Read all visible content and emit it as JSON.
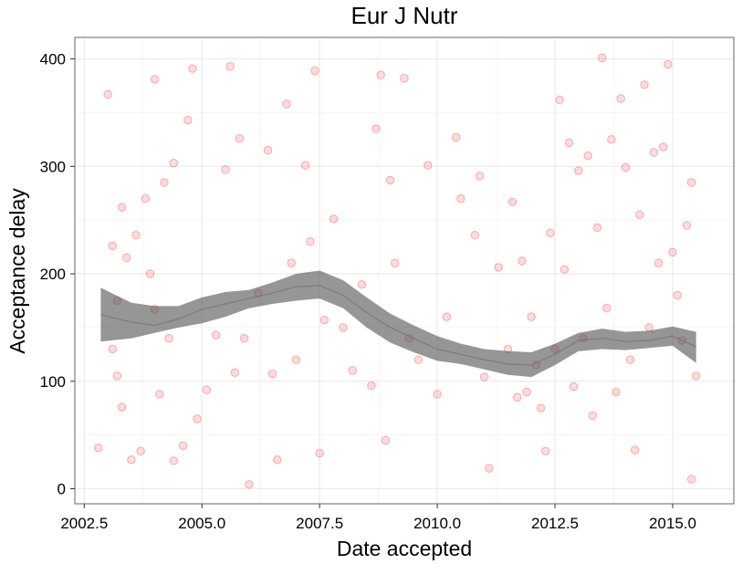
{
  "chart_data": {
    "type": "scatter",
    "title": "Eur J Nutr",
    "xlabel": "Date accepted",
    "ylabel": "Acceptance delay",
    "xlim": [
      2002.3,
      2016.3
    ],
    "ylim": [
      -14,
      420
    ],
    "x_ticks": [
      2002.5,
      2005.0,
      2007.5,
      2010.0,
      2012.5,
      2015.0
    ],
    "x_tick_labels": [
      "2002.5",
      "2005.0",
      "2007.5",
      "2010.0",
      "2012.5",
      "2015.0"
    ],
    "y_ticks": [
      0,
      100,
      200,
      300,
      400
    ],
    "y_tick_labels": [
      "0",
      "100",
      "200",
      "300",
      "400"
    ],
    "grid": true,
    "legend": "none",
    "colors": {
      "points": "#ff0000",
      "smooth_band": "#555555",
      "panel_border": "#7f7f7f",
      "grid": "#ebebeb"
    },
    "series": [
      {
        "values": [
          [
            2002.8,
            38
          ],
          [
            2003.0,
            367
          ],
          [
            2003.1,
            226
          ],
          [
            2003.1,
            130
          ],
          [
            2003.2,
            175
          ],
          [
            2003.2,
            105
          ],
          [
            2003.3,
            262
          ],
          [
            2003.3,
            76
          ],
          [
            2003.4,
            215
          ],
          [
            2003.5,
            27
          ],
          [
            2003.6,
            236
          ],
          [
            2003.7,
            35
          ],
          [
            2003.8,
            270
          ],
          [
            2003.9,
            200
          ],
          [
            2004.0,
            167
          ],
          [
            2004.0,
            381
          ],
          [
            2004.1,
            88
          ],
          [
            2004.2,
            285
          ],
          [
            2004.3,
            140
          ],
          [
            2004.4,
            26
          ],
          [
            2004.4,
            303
          ],
          [
            2004.6,
            40
          ],
          [
            2004.7,
            343
          ],
          [
            2004.8,
            391
          ],
          [
            2004.9,
            65
          ],
          [
            2005.1,
            92
          ],
          [
            2005.3,
            143
          ],
          [
            2005.5,
            297
          ],
          [
            2005.6,
            393
          ],
          [
            2005.7,
            108
          ],
          [
            2005.8,
            326
          ],
          [
            2005.9,
            140
          ],
          [
            2006.0,
            4
          ],
          [
            2006.2,
            182
          ],
          [
            2006.4,
            315
          ],
          [
            2006.5,
            107
          ],
          [
            2006.6,
            27
          ],
          [
            2006.8,
            358
          ],
          [
            2006.9,
            210
          ],
          [
            2007.0,
            120
          ],
          [
            2007.2,
            301
          ],
          [
            2007.3,
            230
          ],
          [
            2007.4,
            389
          ],
          [
            2007.5,
            33
          ],
          [
            2007.6,
            157
          ],
          [
            2007.8,
            251
          ],
          [
            2008.0,
            150
          ],
          [
            2008.2,
            110
          ],
          [
            2008.4,
            190
          ],
          [
            2008.6,
            96
          ],
          [
            2008.7,
            335
          ],
          [
            2008.8,
            385
          ],
          [
            2008.9,
            45
          ],
          [
            2009.0,
            287
          ],
          [
            2009.1,
            210
          ],
          [
            2009.3,
            382
          ],
          [
            2009.4,
            140
          ],
          [
            2009.6,
            120
          ],
          [
            2009.8,
            301
          ],
          [
            2010.0,
            88
          ],
          [
            2010.2,
            160
          ],
          [
            2010.4,
            327
          ],
          [
            2010.5,
            270
          ],
          [
            2010.8,
            236
          ],
          [
            2010.9,
            291
          ],
          [
            2011.0,
            104
          ],
          [
            2011.1,
            19
          ],
          [
            2011.3,
            206
          ],
          [
            2011.5,
            130
          ],
          [
            2011.6,
            267
          ],
          [
            2011.7,
            85
          ],
          [
            2011.8,
            212
          ],
          [
            2011.9,
            90
          ],
          [
            2012.0,
            160
          ],
          [
            2012.1,
            115
          ],
          [
            2012.2,
            75
          ],
          [
            2012.3,
            35
          ],
          [
            2012.4,
            238
          ],
          [
            2012.5,
            130
          ],
          [
            2012.6,
            362
          ],
          [
            2012.7,
            204
          ],
          [
            2012.8,
            322
          ],
          [
            2012.9,
            95
          ],
          [
            2013.0,
            296
          ],
          [
            2013.1,
            140
          ],
          [
            2013.2,
            310
          ],
          [
            2013.3,
            68
          ],
          [
            2013.4,
            243
          ],
          [
            2013.5,
            401
          ],
          [
            2013.6,
            168
          ],
          [
            2013.7,
            325
          ],
          [
            2013.8,
            90
          ],
          [
            2013.9,
            363
          ],
          [
            2014.0,
            299
          ],
          [
            2014.1,
            120
          ],
          [
            2014.2,
            36
          ],
          [
            2014.3,
            255
          ],
          [
            2014.4,
            376
          ],
          [
            2014.5,
            150
          ],
          [
            2014.6,
            313
          ],
          [
            2014.7,
            210
          ],
          [
            2014.8,
            318
          ],
          [
            2014.9,
            395
          ],
          [
            2015.0,
            220
          ],
          [
            2015.1,
            180
          ],
          [
            2015.2,
            138
          ],
          [
            2015.3,
            245
          ],
          [
            2015.4,
            285
          ],
          [
            2015.4,
            9
          ],
          [
            2015.5,
            105
          ]
        ]
      }
    ],
    "smooth": {
      "x": [
        2002.85,
        2003.5,
        2004.0,
        2004.5,
        2005.0,
        2005.5,
        2006.0,
        2006.5,
        2007.0,
        2007.5,
        2008.0,
        2008.5,
        2009.0,
        2009.5,
        2010.0,
        2010.5,
        2011.0,
        2011.5,
        2012.0,
        2012.5,
        2013.0,
        2013.5,
        2014.0,
        2014.5,
        2015.0,
        2015.5
      ],
      "fit": [
        162,
        155,
        152,
        158,
        167,
        172,
        177,
        182,
        188,
        189,
        180,
        164,
        150,
        140,
        130,
        125,
        120,
        116,
        115,
        125,
        138,
        140,
        137,
        138,
        142,
        132
      ],
      "lower": [
        137,
        140,
        145,
        150,
        154,
        160,
        168,
        172,
        175,
        177,
        168,
        150,
        136,
        127,
        119,
        116,
        111,
        106,
        104,
        115,
        128,
        130,
        129,
        131,
        133,
        117
      ],
      "upper": [
        187,
        173,
        170,
        170,
        178,
        183,
        185,
        192,
        200,
        203,
        194,
        178,
        163,
        152,
        142,
        135,
        130,
        128,
        127,
        135,
        145,
        149,
        146,
        147,
        151,
        146
      ]
    }
  }
}
